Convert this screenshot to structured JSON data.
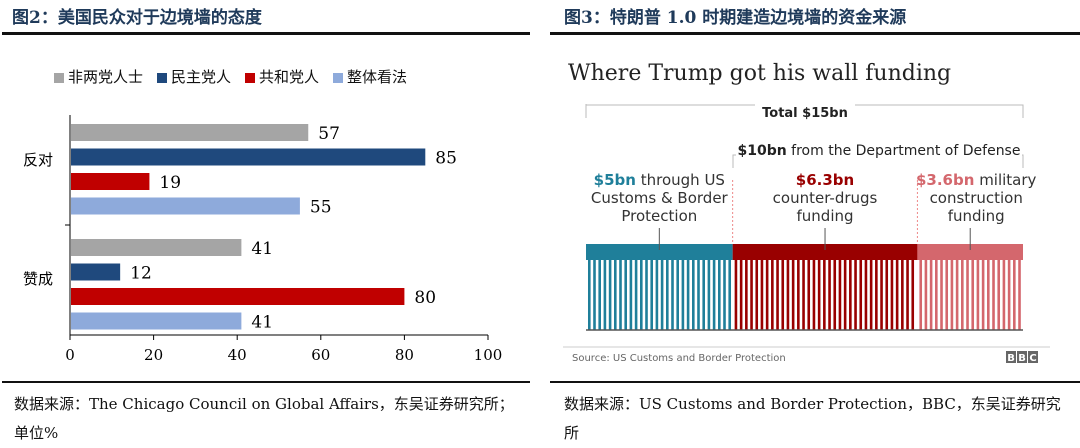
{
  "left": {
    "title": "图2：美国民众对于边境墙的态度",
    "source": "数据来源：The Chicago Council on Global Affairs，东吴证券研究所；单位%"
  },
  "right": {
    "title": "图3：特朗普 1.0 时期建造边境墙的资金来源",
    "source": "数据来源：US Customs and Border Protection，BBC，东吴证券研究所"
  },
  "chart_data": [
    {
      "type": "bar",
      "orientation": "horizontal",
      "categories": [
        "反对",
        "赞成"
      ],
      "series": [
        {
          "name": "非两党人士",
          "color": "#a5a5a5",
          "values": [
            57,
            41
          ]
        },
        {
          "name": "民主党人",
          "color": "#1f497d",
          "values": [
            85,
            12
          ]
        },
        {
          "name": "共和党人",
          "color": "#c00000",
          "values": [
            19,
            80
          ]
        },
        {
          "name": "整体看法",
          "color": "#8eaadb",
          "values": [
            55,
            41
          ]
        }
      ],
      "xlim": [
        0,
        100
      ],
      "xticks": [
        0,
        20,
        40,
        60,
        80,
        100
      ],
      "legend": "top"
    },
    {
      "type": "bar",
      "orientation": "stacked-horizontal",
      "title": "Where Trump got his wall funding",
      "total_label": "Total $15bn",
      "group_label_bold": "$10bn",
      "group_label": "from the Department of Defense",
      "segments": [
        {
          "amount": "$5bn",
          "text": [
            "through US",
            "Customs & Border",
            "Protection"
          ],
          "value": 5,
          "color": "#1f7f9a"
        },
        {
          "amount": "$6.3bn",
          "text": [
            "counter-drugs",
            "funding"
          ],
          "value": 6.3,
          "color": "#990000"
        },
        {
          "amount": "$3.6bn",
          "text": [
            "military",
            "construction",
            "funding"
          ],
          "value": 3.6,
          "color": "#d4676d"
        }
      ],
      "source": "Source: US Customs and Border Protection",
      "logo": "BBC"
    }
  ]
}
